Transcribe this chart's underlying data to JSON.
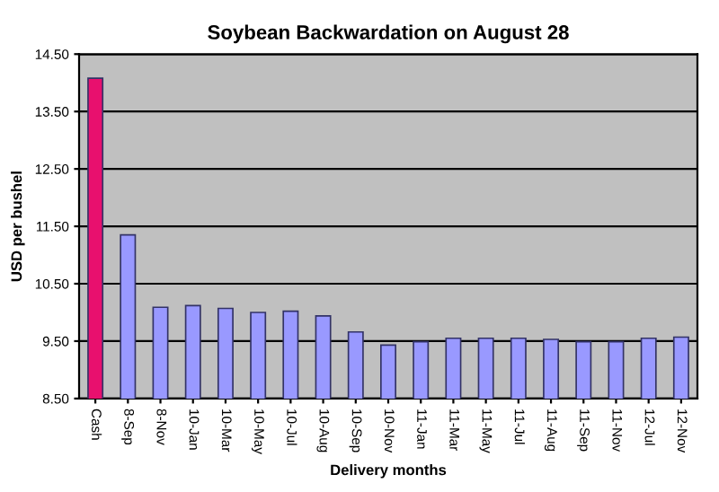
{
  "chart_data": {
    "type": "bar",
    "title": "Soybean Backwardation on August 28",
    "xlabel": "Delivery months",
    "ylabel": "USD per bushel",
    "categories": [
      "Cash",
      "8-Sep",
      "8-Nov",
      "10-Jan",
      "10-Mar",
      "10-May",
      "10-Jul",
      "10-Aug",
      "10-Sep",
      "10-Nov",
      "11-Jan",
      "11-Mar",
      "11-May",
      "11-Jul",
      "11-Aug",
      "11-Sep",
      "11-Nov",
      "12-Jul",
      "12-Nov"
    ],
    "values": [
      14.08,
      11.35,
      10.09,
      10.12,
      10.07,
      10.0,
      10.02,
      9.94,
      9.66,
      9.43,
      9.49,
      9.55,
      9.55,
      9.55,
      9.53,
      9.49,
      9.49,
      9.55,
      9.57
    ],
    "colors": [
      "#e8106e",
      "#9999ff",
      "#9999ff",
      "#9999ff",
      "#9999ff",
      "#9999ff",
      "#9999ff",
      "#9999ff",
      "#9999ff",
      "#9999ff",
      "#9999ff",
      "#9999ff",
      "#9999ff",
      "#9999ff",
      "#9999ff",
      "#9999ff",
      "#9999ff",
      "#9999ff",
      "#9999ff"
    ],
    "ylim": [
      8.5,
      14.5
    ],
    "yticks": [
      {
        "value": 8.5,
        "label": "8.50"
      },
      {
        "value": 9.5,
        "label": "9.50"
      },
      {
        "value": 10.5,
        "label": "10.50"
      },
      {
        "value": 11.5,
        "label": "11.50"
      },
      {
        "value": 12.5,
        "label": "12.50"
      },
      {
        "value": 13.5,
        "label": "13.50"
      },
      {
        "value": 14.5,
        "label": "14.50"
      }
    ],
    "grid": "y",
    "legend": false
  }
}
